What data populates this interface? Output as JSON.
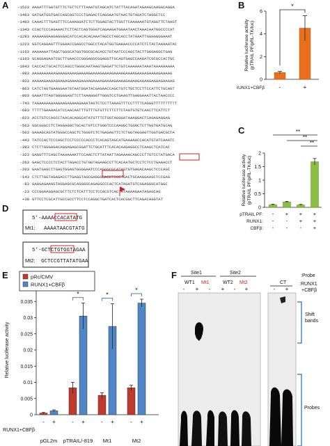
{
  "panels": {
    "A": "A",
    "B": "B",
    "C": "C",
    "D": "D",
    "E": "E",
    "F": "F"
  },
  "panel_a": {
    "rows": [
      {
        "pos": "-1523",
        "seq": "AAAATTTGATGTTTCTGTTCTTTAAATGTAGCATCTATTTACAGATAGAAGCAAGGCAGGA"
      },
      {
        "pos": "-1463",
        "seq": "GATGATGGTGACCAGCGGTCCCTGAGACTCAGGAATGTAACTGTAGATCTAGGCTCC"
      },
      {
        "pos": "-1403",
        "seq": "CAAACTTTGAGTTTCCAAAGGATCTCTTGGAGTACTTGGTTCAAAAAATGTAGGTTCTAAGT"
      },
      {
        "pos": "-1343",
        "seq": "CCACTCCCAGAAACTCTTACTCAGTGGGTCAGAAGATGGAATAACTAAACAATGGCCCCAT"
      },
      {
        "pos": "-1283",
        "seq": "AAAAAGGAAGAGGGACATCCACACACAAATAGCCTAGCACCTATAAATTGGGGGGGAAAT"
      },
      {
        "pos": "-1223",
        "seq": "GGTCAGGAGTTTGGAACCGAGCCTGGCCTACATGGTGAAAACCCCATCTCTACTAAAAATAC"
      },
      {
        "pos": "-1163",
        "seq": "AAAAAAATTAGCTGGGCATGGTGGCGCACACCTGTAATCCCAGCTACTTGGGAGGCTGAG"
      },
      {
        "pos": "-1103",
        "seq": "GCAGGAGAATCGCTTGAACCCGGGAGGCGGAGGTTGCAGTGAGCCAAGATCGCGCCACTGC"
      },
      {
        "pos": "-1043",
        "seq": "CACCACTGCACTCCAGCCTGGGCAATAAGTGAGATTCTGTCAAAAAATAAATAAAAAAAAA"
      },
      {
        "pos": "-983",
        "seq": "AAAAAAAAAAGAAAGAAAAGAAAAGAAAAGAAAAGAAAAGAAAAGAAAAGAAAAGAAAAG"
      },
      {
        "pos": "-923",
        "seq": "AAAAAGAAAAGAAAAGAAAAGAAAAGAAAAGAAAAGAAAAGAAAAGAAAAGAAAAGAAAAG"
      },
      {
        "pos": "-863",
        "seq": "CATCTAGTGAAGGAATGTAATGGATACGAGAACCAGCTGTCTGCTCCTTCCATTCTGCAGT"
      },
      {
        "pos": "-803",
        "seq": "GAAATTTAGTGGGGGAGTTCTTAAAGGGTTGGGTCCTGAAGTTGAGGAAATTACTAACCCC"
      },
      {
        "pos": "-743",
        "seq": "TAAAAAAAAAAAAAGAAAAAGAAATAGTCTCCTTAAAGTTTCCTTTTCAGGGTTTTTTTTTT"
      },
      {
        "pos": "-683",
        "seq": "TTTTTGAAAACATCCAACAATTTGTTTGTGTTCTTCTTCTAGTGTGTCAACTTCATTCT"
      },
      {
        "pos": "-623",
        "seq": "ACCTGTCCAGCCTAACACAGGCATATGTTTCTGGTAGGGATAAAGGACTCAGAGAGGAG"
      },
      {
        "pos": "-563",
        "seq": "GGCGGGCCTCTAGGAGGCTGCACTGTCCTGGGTCCCAAGGCTGGGCTCTTGGTGATGCAG"
      },
      {
        "pos": "-503",
        "seq": "GAAAGCAGTATGGGCCAGCTCTGGGTCTCTGAGAGTTCTCTGGTAGGAGTTGGTGACGCTA"
      },
      {
        "pos": "-443",
        "seq": "TATCCACTCCCAGCTCCTCCCCCACCCTCACAGTAGCATGAAAAACCACATGTATCAAATC"
      },
      {
        "pos": "-383",
        "seq": "CTCTTGGGAGACAGGAGAGCGGATTCTGCATTTCACACAAGAGGCCTCAAGCTCATCAC"
      },
      {
        "pos": "-323",
        "seq": "GAGGTTTCAGCTAAAAAAATTCCAACTCTTATAATTAGAAAACAGCCCTTGTCCTATGACA"
      },
      {
        "pos": "-263",
        "seq": "GAGCTCCCCTCTACTTAGACCTGTGGTAGAAGCCTTCACAATGCTCCTCTCCTGAAACCT"
      },
      {
        "pos": "-203",
        "seq": "GAATGGGCTTGAGTGGAGTGGGGAATCCCAGGGCGCATAGTGTGAGACAAGCTCCCAGC"
      },
      {
        "pos": "-143",
        "seq": "CTCTTGGTAGAGACCTTGAGGTAGCGAGGGGAGCTCGCTGACTGCAAGGAAGCTCCGAG"
      },
      {
        "pos": "-83",
        "seq": "GAGGAGAAGGTAGGAGCGCAGGGGCAGAGGCCCACTCATAGATGTCGGAGGGCATGGC"
      },
      {
        "pos": "-23",
        "seq": "CCCGGAAGGAGCGCTTCTCTCATTTCCTCCACGTCACTATAAAAGAATAGAGCAG"
      },
      {
        "pos": "+38",
        "seq": "GTTCCTCGCATTGCCGCCTTCCTCCAGGCTGATCACTCACGGCTTCAGACAGGTAT"
      }
    ]
  },
  "panel_d": {
    "wt1_seq": "5'-AAAACCACATATG",
    "mt1_label": "Mt1:",
    "mt1_seq": "AAAATAACGTATG",
    "wt2_seq": "5'-GCTCTGTGGTAGAA",
    "mt2_label": "Mt2:",
    "mt2_seq": "GCTCCGTTATATGAA"
  },
  "panel_f": {
    "site1": "Site1",
    "site2": "Site2",
    "lanes_left": [
      "WT1",
      "Mt1",
      "WT2",
      "Mt2"
    ],
    "lane_right": "CT",
    "probe_label": ":Probe",
    "runx_label": ":RUNX1",
    "cbf_label": "+CBFβ",
    "signs_left": [
      "-",
      "+",
      "-",
      "+",
      "-",
      "+",
      "-",
      "+"
    ],
    "signs_right": [
      "-",
      "+"
    ],
    "shift_label_1": "Shift",
    "shift_label_2": "bands",
    "probes_label": "Probes"
  },
  "colors": {
    "orange": "#e8701c",
    "green": "#8cbd45",
    "red_bar": "#c0392f",
    "blue_bar": "#4e86c6",
    "red_text": "#d0202a"
  },
  "chart_data": [
    {
      "panel": "B",
      "type": "bar",
      "ylabel": "Relative luciferase activity (pTRAIL PF/pRL-TK/luc)",
      "ylim": [
        0,
        6
      ],
      "yticks": [
        0,
        2,
        4,
        6
      ],
      "categories": [
        "-",
        "+"
      ],
      "row_label": "RUNX1+CBFβ",
      "values": [
        0.6,
        4.5
      ],
      "errors": [
        0.1,
        1.1
      ],
      "significance": "*"
    },
    {
      "panel": "C",
      "type": "bar",
      "ylabel": "Relative luciferase activity (pTRAIL PF/pRL-TK/luc)",
      "ylim": [
        0,
        2
      ],
      "yticks": [
        0,
        0.5,
        1,
        1.5,
        2
      ],
      "row_labels": [
        "pTRAIL PF:",
        "RUNX1:",
        "CBFβ:"
      ],
      "rows": [
        [
          "-",
          "+",
          "+",
          "+"
        ],
        [
          "-",
          "-",
          "+",
          "+"
        ],
        [
          "-",
          "-",
          "-",
          "+"
        ]
      ],
      "values": [
        0.1,
        0.2,
        0.09,
        1.68
      ],
      "errors": [
        0.02,
        0.02,
        0.02,
        0.12
      ],
      "significance": [
        "**",
        "**",
        "**"
      ]
    },
    {
      "panel": "E",
      "type": "bar",
      "ylabel": "Relative luciferase activity",
      "ylim": [
        0,
        0.04
      ],
      "yticks": [
        0,
        0.005,
        0.01,
        0.015,
        0.02,
        0.025,
        0.03,
        0.035,
        0.04
      ],
      "categories": [
        "pGL2m",
        "pTRAIL/-819",
        "Mt1",
        "Mt2"
      ],
      "row_label": "RUNX1+CBFβ",
      "signs": [
        "-",
        "+",
        "-",
        "+",
        "-",
        "+",
        "-",
        "+"
      ],
      "series": [
        {
          "name": "pRc/CMV",
          "values": [
            0.0005,
            0.0083,
            0.006,
            0.0083
          ],
          "errors": [
            0.0002,
            0.0017,
            0.0008,
            0.0008
          ]
        },
        {
          "name": "RUNX1+CBFβ",
          "values": [
            0.0012,
            0.0305,
            0.0273,
            0.0345
          ],
          "errors": [
            0.0003,
            0.004,
            0.007,
            0.0012
          ]
        }
      ],
      "significance": "*"
    }
  ]
}
